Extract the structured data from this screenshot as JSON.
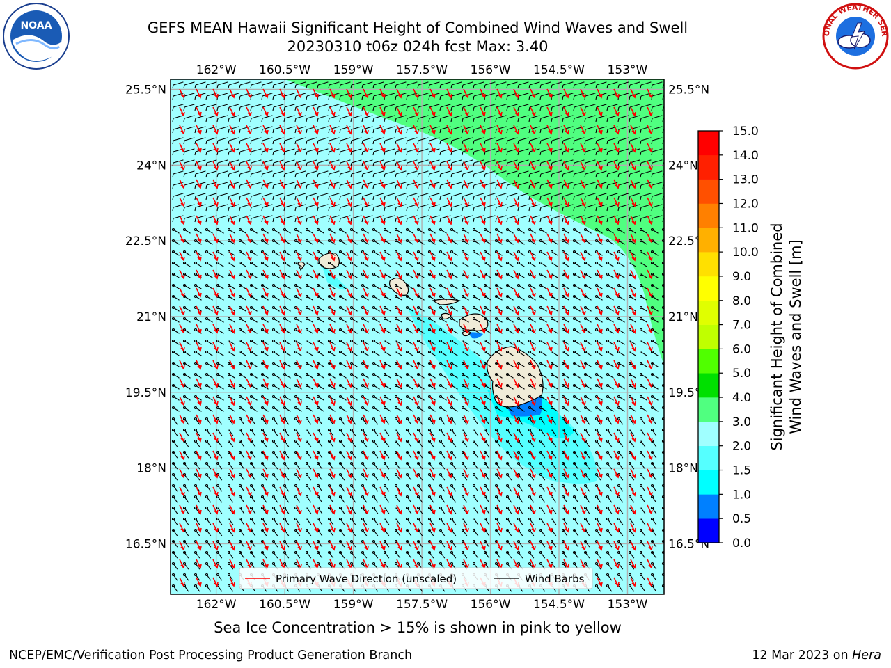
{
  "title_line1": "GEFS MEAN Hawaii Significant Height of Combined Wind Waves and Swell",
  "title_line2": "20230310 t06z 024h fcst   Max: 3.40",
  "logos": {
    "left": "noaa-logo",
    "right": "nws-logo",
    "left_text": "NOAA",
    "right_text": "NATIONAL WEATHER SERVICE"
  },
  "map": {
    "lon_ticks": [
      "162°W",
      "160.5°W",
      "159°W",
      "157.5°W",
      "156°W",
      "154.5°W",
      "153°W"
    ],
    "lat_ticks": [
      "25.5°N",
      "24°N",
      "22.5°N",
      "21°N",
      "19.5°N",
      "18°N",
      "16.5°N"
    ],
    "lon_values": [
      -162,
      -160.5,
      -159,
      -157.5,
      -156,
      -154.5,
      -153
    ],
    "lat_values": [
      25.5,
      24,
      22.5,
      21,
      19.5,
      18,
      16.5
    ],
    "extent": {
      "lon_min": -163.0,
      "lon_max": -152.2,
      "lat_min": 15.5,
      "lat_max": 25.7
    },
    "colors": {
      "ocean_low": "#a0ffff",
      "ocean_mid": "#55ffff",
      "ocean_high": "#50ff80",
      "deep_cyan": "#00ffff",
      "near_shore": "#0080ff",
      "land": "#f0ecd8",
      "wave_arrow": "#ff0000",
      "barb": "#000000",
      "grid": "#b0b0b0"
    },
    "legend": {
      "wave": "Primary Wave Direction (unscaled)",
      "barbs": "Wind Barbs"
    }
  },
  "colorbar": {
    "label_line1": "Significant Height of Combined",
    "label_line2": "Wind Waves and Swell [m]",
    "ticks": [
      "0.0",
      "0.5",
      "1.0",
      "1.5",
      "2.0",
      "3.0",
      "4.0",
      "5.0",
      "6.0",
      "7.0",
      "8.0",
      "9.0",
      "10.0",
      "11.0",
      "12.0",
      "13.0",
      "14.0",
      "15.0"
    ],
    "colors": [
      "#0000ff",
      "#0080ff",
      "#00ffff",
      "#55ffff",
      "#a0ffff",
      "#50ff80",
      "#00e000",
      "#50ff00",
      "#c0ff00",
      "#e0ff00",
      "#ffff00",
      "#ffe000",
      "#ffb000",
      "#ff8000",
      "#ff5000",
      "#ff2000",
      "#ff0000"
    ]
  },
  "note": "Sea Ice Concentration > 15% is shown in pink to yellow",
  "footer": {
    "left": "NCEP/EMC/Verification Post Processing Product Generation Branch",
    "date": "12 Mar 2023 on",
    "machine": "Hera"
  }
}
